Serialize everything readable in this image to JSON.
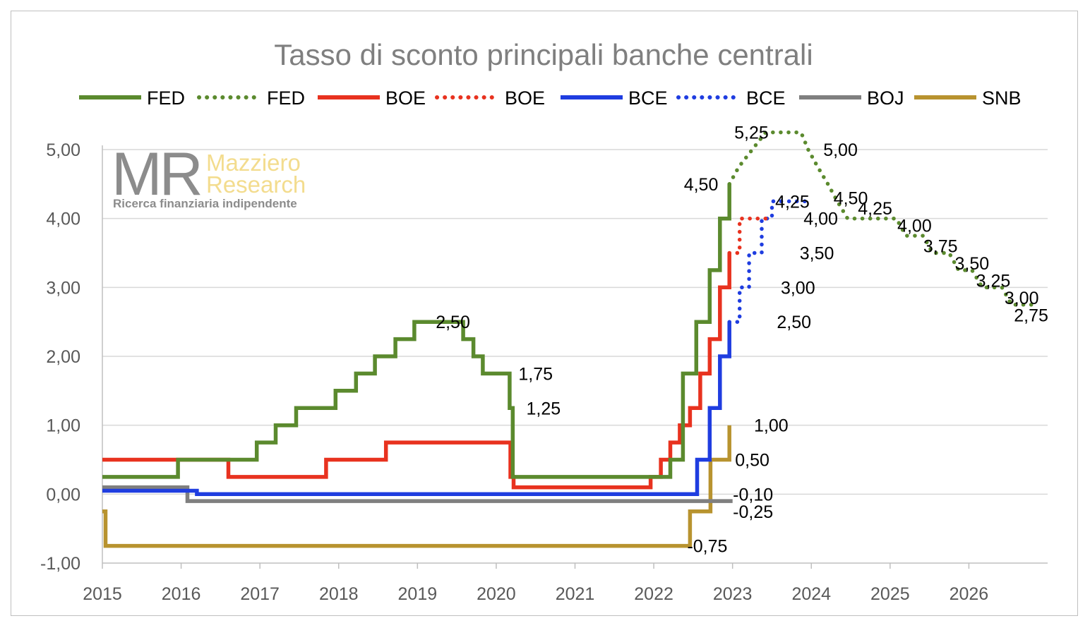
{
  "chart_data": {
    "type": "line",
    "title": "Tasso di sconto principali banche centrali",
    "xlabel": "",
    "ylabel": "",
    "xlim": [
      2015,
      2027
    ],
    "ylim": [
      -1,
      5.5
    ],
    "x_ticks": [
      "2015",
      "2016",
      "2017",
      "2018",
      "2019",
      "2020",
      "2021",
      "2022",
      "2023",
      "2024",
      "2025",
      "2026"
    ],
    "y_ticks": [
      "-1,00",
      "0,00",
      "1,00",
      "2,00",
      "3,00",
      "4,00",
      "5,00"
    ],
    "y_tick_values": [
      -1,
      0,
      1,
      2,
      3,
      4,
      5
    ],
    "grid": true,
    "legend_position": "top",
    "series": [
      {
        "name": "FED",
        "color": "#5b8a2e",
        "style": "solid",
        "step": true,
        "points": [
          [
            2015.0,
            0.25
          ],
          [
            2015.96,
            0.25
          ],
          [
            2015.96,
            0.5
          ],
          [
            2016.96,
            0.5
          ],
          [
            2016.96,
            0.75
          ],
          [
            2017.2,
            0.75
          ],
          [
            2017.2,
            1.0
          ],
          [
            2017.46,
            1.0
          ],
          [
            2017.46,
            1.25
          ],
          [
            2017.96,
            1.25
          ],
          [
            2017.96,
            1.5
          ],
          [
            2018.22,
            1.5
          ],
          [
            2018.22,
            1.75
          ],
          [
            2018.46,
            1.75
          ],
          [
            2018.46,
            2.0
          ],
          [
            2018.72,
            2.0
          ],
          [
            2018.72,
            2.25
          ],
          [
            2018.96,
            2.25
          ],
          [
            2018.96,
            2.5
          ],
          [
            2019.58,
            2.5
          ],
          [
            2019.58,
            2.25
          ],
          [
            2019.71,
            2.25
          ],
          [
            2019.71,
            2.0
          ],
          [
            2019.83,
            2.0
          ],
          [
            2019.83,
            1.75
          ],
          [
            2020.17,
            1.75
          ],
          [
            2020.17,
            1.25
          ],
          [
            2020.21,
            1.25
          ],
          [
            2020.21,
            0.25
          ],
          [
            2022.21,
            0.25
          ],
          [
            2022.21,
            0.5
          ],
          [
            2022.37,
            0.5
          ],
          [
            2022.37,
            1.75
          ],
          [
            2022.54,
            1.75
          ],
          [
            2022.54,
            2.5
          ],
          [
            2022.71,
            2.5
          ],
          [
            2022.71,
            3.25
          ],
          [
            2022.84,
            3.25
          ],
          [
            2022.84,
            4.0
          ],
          [
            2022.96,
            4.0
          ],
          [
            2022.96,
            4.5
          ]
        ]
      },
      {
        "name": "FED",
        "color": "#5b8a2e",
        "style": "dotted",
        "step": false,
        "points": [
          [
            2022.96,
            4.5
          ],
          [
            2023.08,
            4.75
          ],
          [
            2023.25,
            5.0
          ],
          [
            2023.42,
            5.25
          ],
          [
            2023.87,
            5.25
          ],
          [
            2023.96,
            5.0
          ],
          [
            2024.08,
            4.75
          ],
          [
            2024.21,
            4.5
          ],
          [
            2024.33,
            4.25
          ],
          [
            2024.46,
            4.0
          ],
          [
            2025.08,
            4.0
          ],
          [
            2025.2,
            3.75
          ],
          [
            2025.42,
            3.75
          ],
          [
            2025.54,
            3.5
          ],
          [
            2025.75,
            3.5
          ],
          [
            2025.87,
            3.25
          ],
          [
            2026.04,
            3.25
          ],
          [
            2026.17,
            3.0
          ],
          [
            2026.42,
            3.0
          ],
          [
            2026.54,
            2.75
          ],
          [
            2026.88,
            2.75
          ]
        ]
      },
      {
        "name": "BOE",
        "color": "#e8321f",
        "style": "solid",
        "step": true,
        "points": [
          [
            2015.0,
            0.5
          ],
          [
            2016.6,
            0.5
          ],
          [
            2016.6,
            0.25
          ],
          [
            2017.84,
            0.25
          ],
          [
            2017.84,
            0.5
          ],
          [
            2018.6,
            0.5
          ],
          [
            2018.6,
            0.75
          ],
          [
            2020.18,
            0.75
          ],
          [
            2020.18,
            0.25
          ],
          [
            2020.22,
            0.25
          ],
          [
            2020.22,
            0.1
          ],
          [
            2021.96,
            0.1
          ],
          [
            2021.96,
            0.25
          ],
          [
            2022.09,
            0.25
          ],
          [
            2022.09,
            0.5
          ],
          [
            2022.21,
            0.5
          ],
          [
            2022.21,
            0.75
          ],
          [
            2022.33,
            0.75
          ],
          [
            2022.33,
            1.0
          ],
          [
            2022.46,
            1.0
          ],
          [
            2022.46,
            1.25
          ],
          [
            2022.59,
            1.25
          ],
          [
            2022.59,
            1.75
          ],
          [
            2022.71,
            1.75
          ],
          [
            2022.71,
            2.25
          ],
          [
            2022.84,
            2.25
          ],
          [
            2022.84,
            3.0
          ],
          [
            2022.96,
            3.0
          ],
          [
            2022.96,
            3.5
          ]
        ]
      },
      {
        "name": "BOE",
        "color": "#e8321f",
        "style": "dotted",
        "step": true,
        "points": [
          [
            2022.96,
            3.5
          ],
          [
            2023.09,
            3.5
          ],
          [
            2023.09,
            4.0
          ],
          [
            2023.46,
            4.0
          ]
        ]
      },
      {
        "name": "BCE",
        "color": "#1f3de0",
        "style": "solid",
        "step": true,
        "points": [
          [
            2015.0,
            0.05
          ],
          [
            2016.2,
            0.05
          ],
          [
            2016.2,
            0.0
          ],
          [
            2022.55,
            0.0
          ],
          [
            2022.55,
            0.5
          ],
          [
            2022.71,
            0.5
          ],
          [
            2022.71,
            1.25
          ],
          [
            2022.84,
            1.25
          ],
          [
            2022.84,
            2.0
          ],
          [
            2022.96,
            2.0
          ],
          [
            2022.96,
            2.5
          ]
        ]
      },
      {
        "name": "BCE",
        "color": "#1f3de0",
        "style": "dotted",
        "step": true,
        "points": [
          [
            2022.96,
            2.5
          ],
          [
            2023.09,
            2.5
          ],
          [
            2023.09,
            3.0
          ],
          [
            2023.21,
            3.0
          ],
          [
            2023.21,
            3.5
          ],
          [
            2023.37,
            3.5
          ],
          [
            2023.37,
            4.0
          ],
          [
            2023.5,
            4.0
          ],
          [
            2023.5,
            4.25
          ],
          [
            2023.96,
            4.25
          ]
        ]
      },
      {
        "name": "BOJ",
        "color": "#7f7f7f",
        "style": "solid",
        "step": true,
        "points": [
          [
            2015.0,
            0.1
          ],
          [
            2016.08,
            0.1
          ],
          [
            2016.08,
            -0.1
          ],
          [
            2023.0,
            -0.1
          ]
        ]
      },
      {
        "name": "SNB",
        "color": "#b8932f",
        "style": "solid",
        "step": true,
        "points": [
          [
            2015.0,
            -0.25
          ],
          [
            2015.04,
            -0.25
          ],
          [
            2015.04,
            -0.75
          ],
          [
            2022.46,
            -0.75
          ],
          [
            2022.46,
            -0.25
          ],
          [
            2022.72,
            -0.25
          ],
          [
            2022.72,
            0.5
          ],
          [
            2022.96,
            0.5
          ],
          [
            2022.96,
            1.0
          ]
        ]
      }
    ],
    "annotations": [
      {
        "text": "2,50",
        "x": 2019.45,
        "y": 2.5
      },
      {
        "text": "1,75",
        "x": 2020.5,
        "y": 1.75
      },
      {
        "text": "1,25",
        "x": 2020.6,
        "y": 1.25
      },
      {
        "text": "4,50",
        "x": 2022.6,
        "y": 4.5
      },
      {
        "text": "5,25",
        "x": 2023.24,
        "y": 5.25
      },
      {
        "text": "5,00",
        "x": 2024.37,
        "y": 5.0
      },
      {
        "text": "4,25",
        "x": 2023.76,
        "y": 4.25
      },
      {
        "text": "4,00",
        "x": 2024.12,
        "y": 4.0
      },
      {
        "text": "3,50",
        "x": 2024.07,
        "y": 3.5
      },
      {
        "text": "3,00",
        "x": 2023.83,
        "y": 3.0
      },
      {
        "text": "2,50",
        "x": 2023.78,
        "y": 2.5
      },
      {
        "text": "1,00",
        "x": 2023.49,
        "y": 1.0
      },
      {
        "text": "0,50",
        "x": 2023.25,
        "y": 0.5
      },
      {
        "text": "-0,10",
        "x": 2023.26,
        "y": 0.0
      },
      {
        "text": "-0,25",
        "x": 2023.26,
        "y": -0.25
      },
      {
        "text": "-0,75",
        "x": 2022.68,
        "y": -0.75
      },
      {
        "text": "4,50",
        "x": 2024.5,
        "y": 4.3
      },
      {
        "text": "4,25",
        "x": 2024.81,
        "y": 4.15
      },
      {
        "text": "4,00",
        "x": 2025.31,
        "y": 3.9
      },
      {
        "text": "3,75",
        "x": 2025.64,
        "y": 3.6
      },
      {
        "text": "3,50",
        "x": 2026.04,
        "y": 3.35
      },
      {
        "text": "3,25",
        "x": 2026.31,
        "y": 3.1
      },
      {
        "text": "3,00",
        "x": 2026.67,
        "y": 2.85
      },
      {
        "text": "2,75",
        "x": 2026.79,
        "y": 2.6
      }
    ]
  },
  "legend": [
    {
      "name": "FED",
      "color": "#5b8a2e",
      "style": "solid"
    },
    {
      "name": "FED",
      "color": "#5b8a2e",
      "style": "dotted"
    },
    {
      "name": "BOE",
      "color": "#e8321f",
      "style": "solid"
    },
    {
      "name": "BOE",
      "color": "#e8321f",
      "style": "dotted"
    },
    {
      "name": "BCE",
      "color": "#1f3de0",
      "style": "solid"
    },
    {
      "name": "BCE",
      "color": "#1f3de0",
      "style": "dotted"
    },
    {
      "name": "BOJ",
      "color": "#7f7f7f",
      "style": "solid"
    },
    {
      "name": "SNB",
      "color": "#b8932f",
      "style": "solid"
    }
  ],
  "logo": {
    "mark": "MR",
    "line1": "Mazziero",
    "line2": "Research",
    "tagline": "Ricerca finanziaria indipendente"
  }
}
